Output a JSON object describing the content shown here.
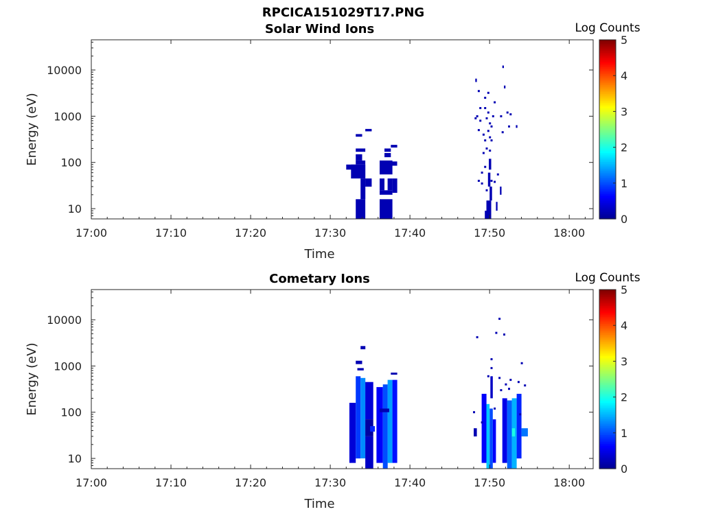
{
  "page_title": "RPCICA151029T17.PNG",
  "colormap": [
    "#00008f",
    "#0000ff",
    "#0080ff",
    "#00ffff",
    "#80ff80",
    "#ffff00",
    "#ff8000",
    "#ff0000",
    "#800000"
  ],
  "chart_data": [
    {
      "type": "heatmap",
      "title": "Solar Wind Ions",
      "xlabel": "Time",
      "ylabel": "Energy (eV)",
      "colorbar_label": "Log Counts",
      "colorbar_ticks": [
        "0",
        "1",
        "2",
        "3",
        "4",
        "5"
      ],
      "colorbar_range": [
        0,
        5
      ],
      "x_ticks": [
        "17:00",
        "17:10",
        "17:20",
        "17:30",
        "17:40",
        "17:50",
        "18:00"
      ],
      "xlim_minutes": [
        0,
        63
      ],
      "y_scale": "log",
      "y_ticks": [
        10,
        100,
        1000,
        10000
      ],
      "y_tick_labels": [
        "10",
        "100",
        "1000",
        "10000"
      ],
      "ylim": [
        6,
        45000
      ],
      "cells": [
        {
          "t": [
            33.2,
            34.4
          ],
          "e": [
            6,
            16
          ],
          "v": 0.2
        },
        {
          "t": [
            33.8,
            34.4
          ],
          "e": [
            16,
            45
          ],
          "v": 0.2
        },
        {
          "t": [
            32.6,
            34.4
          ],
          "e": [
            45,
            90
          ],
          "v": 0.2
        },
        {
          "t": [
            32.0,
            33.2
          ],
          "e": [
            70,
            90
          ],
          "v": 0.2
        },
        {
          "t": [
            33.2,
            34.4
          ],
          "e": [
            90,
            110
          ],
          "v": 0.2
        },
        {
          "t": [
            33.2,
            34.0
          ],
          "e": [
            110,
            150
          ],
          "v": 0.2
        },
        {
          "t": [
            33.2,
            34.4
          ],
          "e": [
            170,
            200
          ],
          "v": 0.2
        },
        {
          "t": [
            33.2,
            34.0
          ],
          "e": [
            360,
            410
          ],
          "v": 0.2
        },
        {
          "t": [
            34.4,
            35.2
          ],
          "e": [
            30,
            45
          ],
          "v": 0.2
        },
        {
          "t": [
            34.4,
            35.2
          ],
          "e": [
            470,
            530
          ],
          "v": 0.2
        },
        {
          "t": [
            36.2,
            37.8
          ],
          "e": [
            6,
            16
          ],
          "v": 0.2
        },
        {
          "t": [
            36.2,
            37.8
          ],
          "e": [
            20,
            25
          ],
          "v": 0.2
        },
        {
          "t": [
            36.2,
            36.8
          ],
          "e": [
            25,
            45
          ],
          "v": 0.2
        },
        {
          "t": [
            37.2,
            37.8
          ],
          "e": [
            25,
            45
          ],
          "v": 0.2
        },
        {
          "t": [
            37.8,
            38.4
          ],
          "e": [
            22,
            45
          ],
          "v": 0.2
        },
        {
          "t": [
            36.2,
            37.8
          ],
          "e": [
            55,
            110
          ],
          "v": 0.2
        },
        {
          "t": [
            37.0,
            38.4
          ],
          "e": [
            85,
            105
          ],
          "v": 0.2
        },
        {
          "t": [
            36.8,
            37.6
          ],
          "e": [
            130,
            160
          ],
          "v": 0.2
        },
        {
          "t": [
            36.8,
            37.6
          ],
          "e": [
            170,
            200
          ],
          "v": 0.2
        },
        {
          "t": [
            37.6,
            38.4
          ],
          "e": [
            210,
            240
          ],
          "v": 0.2
        },
        {
          "t": [
            49.6,
            50.2
          ],
          "e": [
            6,
            15
          ],
          "v": 0.2
        },
        {
          "t": [
            49.4,
            49.7
          ],
          "e": [
            6,
            9
          ],
          "v": 0.2
        },
        {
          "t": [
            50.0,
            50.3
          ],
          "e": [
            15,
            30
          ],
          "v": 0.2
        },
        {
          "t": [
            49.8,
            50.1
          ],
          "e": [
            30,
            60
          ],
          "v": 0.2
        },
        {
          "t": [
            49.9,
            50.2
          ],
          "e": [
            70,
            120
          ],
          "v": 0.2
        },
        {
          "t": [
            50.8,
            51.0
          ],
          "e": [
            9,
            14
          ],
          "v": 0.2
        },
        {
          "t": [
            51.3,
            51.5
          ],
          "e": [
            20,
            30
          ],
          "v": 0.2
        },
        {
          "t": [
            48.2,
            48.4
          ],
          "e": [
            5500,
            6500
          ],
          "v": 0.2
        },
        {
          "t": [
            51.6,
            51.8
          ],
          "e": [
            11000,
            12500
          ],
          "v": 0.2
        },
        {
          "t": [
            51.8,
            52.0
          ],
          "e": [
            4000,
            4600
          ],
          "v": 0.2
        },
        {
          "t": [
            53.3,
            53.5
          ],
          "e": [
            560,
            640
          ],
          "v": 0.2
        }
      ],
      "points": [
        [
          48.6,
          3500
        ],
        [
          49.4,
          2500
        ],
        [
          49.8,
          3200
        ],
        [
          50.6,
          2000
        ],
        [
          48.8,
          1500
        ],
        [
          49.4,
          1500
        ],
        [
          48.4,
          1000
        ],
        [
          49.8,
          1200
        ],
        [
          50.4,
          1000
        ],
        [
          48.8,
          800
        ],
        [
          49.6,
          900
        ],
        [
          50.2,
          600
        ],
        [
          48.6,
          500
        ],
        [
          49.2,
          400
        ],
        [
          49.8,
          480
        ],
        [
          50.0,
          350
        ],
        [
          49.4,
          300
        ],
        [
          50.2,
          300
        ],
        [
          49.6,
          200
        ],
        [
          50.0,
          180
        ],
        [
          49.2,
          160
        ],
        [
          48.6,
          40
        ],
        [
          49.0,
          35
        ],
        [
          49.6,
          25
        ],
        [
          50.6,
          38
        ],
        [
          51.0,
          55
        ],
        [
          51.4,
          1000
        ],
        [
          52.2,
          1200
        ],
        [
          52.6,
          1100
        ],
        [
          52.4,
          600
        ],
        [
          49.0,
          60
        ],
        [
          49.4,
          80
        ],
        [
          50.2,
          40
        ],
        [
          48.2,
          900
        ],
        [
          51.6,
          450
        ],
        [
          50.0,
          700
        ]
      ]
    },
    {
      "type": "heatmap",
      "title": "Cometary Ions",
      "xlabel": "Time",
      "ylabel": "Energy (eV)",
      "colorbar_label": "Log Counts",
      "colorbar_ticks": [
        "0",
        "1",
        "2",
        "3",
        "4",
        "5"
      ],
      "colorbar_range": [
        0,
        5
      ],
      "x_ticks": [
        "17:00",
        "17:10",
        "17:20",
        "17:30",
        "17:40",
        "17:50",
        "18:00"
      ],
      "xlim_minutes": [
        0,
        63
      ],
      "y_scale": "log",
      "y_ticks": [
        10,
        100,
        1000,
        10000
      ],
      "y_tick_labels": [
        "10",
        "100",
        "1000",
        "10000"
      ],
      "ylim": [
        6,
        45000
      ],
      "cells": [
        {
          "t": [
            32.4,
            33.2
          ],
          "e": [
            8,
            160
          ],
          "v": 0.4
        },
        {
          "t": [
            33.2,
            33.8
          ],
          "e": [
            10,
            600
          ],
          "v": 0.9
        },
        {
          "t": [
            33.8,
            34.4
          ],
          "e": [
            10,
            550
          ],
          "v": 1.3
        },
        {
          "t": [
            34.4,
            35.4
          ],
          "e": [
            70,
            450
          ],
          "v": 0.4
        },
        {
          "t": [
            34.4,
            35.4
          ],
          "e": [
            6,
            30
          ],
          "v": 0.3
        },
        {
          "t": [
            34.4,
            35.4
          ],
          "e": [
            30,
            70
          ],
          "v": 0.1
        },
        {
          "t": [
            35.0,
            35.6
          ],
          "e": [
            38,
            50
          ],
          "v": 0.8
        },
        {
          "t": [
            33.8,
            34.4
          ],
          "e": [
            2300,
            2700
          ],
          "v": 0.2
        },
        {
          "t": [
            33.2,
            34.0
          ],
          "e": [
            1100,
            1300
          ],
          "v": 0.2
        },
        {
          "t": [
            33.4,
            34.2
          ],
          "e": [
            800,
            900
          ],
          "v": 0.2
        },
        {
          "t": [
            35.8,
            36.6
          ],
          "e": [
            8,
            350
          ],
          "v": 0.6
        },
        {
          "t": [
            36.6,
            37.2
          ],
          "e": [
            6,
            400
          ],
          "v": 1.0
        },
        {
          "t": [
            37.2,
            37.8
          ],
          "e": [
            8,
            500
          ],
          "v": 1.4
        },
        {
          "t": [
            37.8,
            38.4
          ],
          "e": [
            8,
            500
          ],
          "v": 0.7
        },
        {
          "t": [
            36.2,
            37.4
          ],
          "e": [
            100,
            120
          ],
          "v": 0.2
        },
        {
          "t": [
            37.6,
            38.4
          ],
          "e": [
            650,
            720
          ],
          "v": 0.2
        },
        {
          "t": [
            49.0,
            49.6
          ],
          "e": [
            8,
            250
          ],
          "v": 0.6
        },
        {
          "t": [
            49.6,
            50.0
          ],
          "e": [
            6,
            150
          ],
          "v": 1.6
        },
        {
          "t": [
            50.0,
            50.4
          ],
          "e": [
            6,
            120
          ],
          "v": 1.0
        },
        {
          "t": [
            50.4,
            50.8
          ],
          "e": [
            8,
            70
          ],
          "v": 0.6
        },
        {
          "t": [
            50.1,
            50.4
          ],
          "e": [
            200,
            600
          ],
          "v": 0.3
        },
        {
          "t": [
            51.6,
            52.2
          ],
          "e": [
            8,
            200
          ],
          "v": 0.5
        },
        {
          "t": [
            52.2,
            52.8
          ],
          "e": [
            6,
            180
          ],
          "v": 1.1
        },
        {
          "t": [
            52.8,
            53.4
          ],
          "e": [
            6,
            200
          ],
          "v": 1.5
        },
        {
          "t": [
            53.4,
            54.0
          ],
          "e": [
            10,
            250
          ],
          "v": 0.8
        },
        {
          "t": [
            54.0,
            54.8
          ],
          "e": [
            30,
            45
          ],
          "v": 1.2
        },
        {
          "t": [
            52.8,
            53.2
          ],
          "e": [
            30,
            45
          ],
          "v": 2.0
        },
        {
          "t": [
            48.0,
            48.4
          ],
          "e": [
            30,
            45
          ],
          "v": 0.2
        }
      ],
      "points": [
        [
          48.4,
          4200
        ],
        [
          50.8,
          5200
        ],
        [
          51.2,
          10500
        ],
        [
          51.8,
          4800
        ],
        [
          50.2,
          1400
        ],
        [
          54.0,
          1150
        ],
        [
          49.8,
          600
        ],
        [
          50.2,
          900
        ],
        [
          51.2,
          550
        ],
        [
          52.0,
          400
        ],
        [
          52.6,
          500
        ],
        [
          53.6,
          450
        ],
        [
          54.4,
          380
        ],
        [
          48.0,
          100
        ],
        [
          49.0,
          60
        ],
        [
          51.4,
          300
        ],
        [
          52.4,
          320
        ],
        [
          50.6,
          120
        ],
        [
          53.8,
          90
        ]
      ]
    }
  ]
}
